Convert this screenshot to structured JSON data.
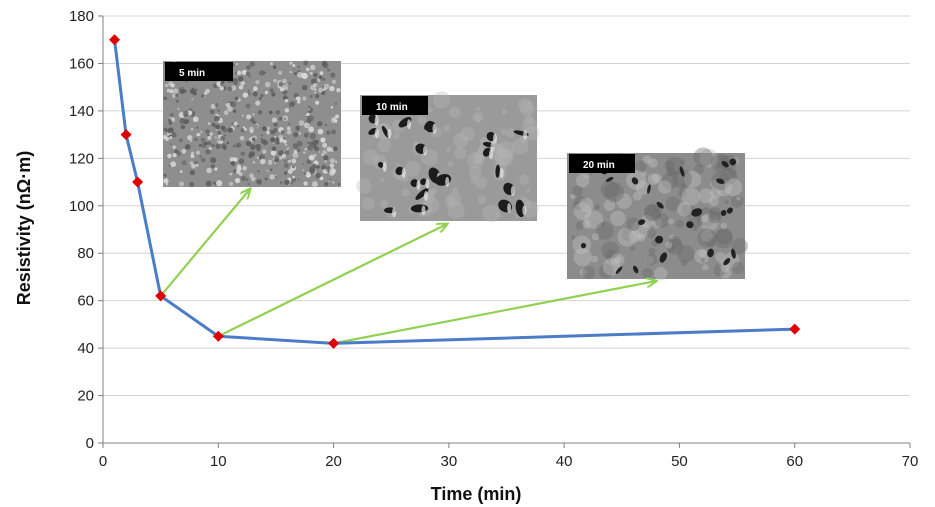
{
  "chart_data": {
    "type": "line",
    "xlabel": "Time (min)",
    "ylabel": "Resistivity (nΩ·m)",
    "xlim": [
      0,
      70
    ],
    "ylim": [
      0,
      180
    ],
    "x_ticks": [
      0,
      10,
      20,
      30,
      40,
      50,
      60,
      70
    ],
    "y_ticks": [
      0,
      20,
      40,
      60,
      80,
      100,
      120,
      140,
      160,
      180
    ],
    "grid": "horizontal",
    "series": [
      {
        "x": [
          1,
          2,
          3,
          5,
          10,
          20,
          60
        ],
        "y": [
          170,
          130,
          110,
          62,
          45,
          42,
          48
        ],
        "line_color": "#4a7cc7",
        "marker_color": "#e00000",
        "marker": "diamond"
      }
    ],
    "insets": [
      {
        "label": "5 min",
        "points_to": {
          "x": 5,
          "y": 62
        },
        "texture": "grain"
      },
      {
        "label": "10 min",
        "points_to": {
          "x": 10,
          "y": 45
        },
        "texture": "pores"
      },
      {
        "label": "20 min",
        "points_to": {
          "x": 20,
          "y": 42
        },
        "texture": "coarse"
      }
    ],
    "arrow_color": "#92d050"
  }
}
